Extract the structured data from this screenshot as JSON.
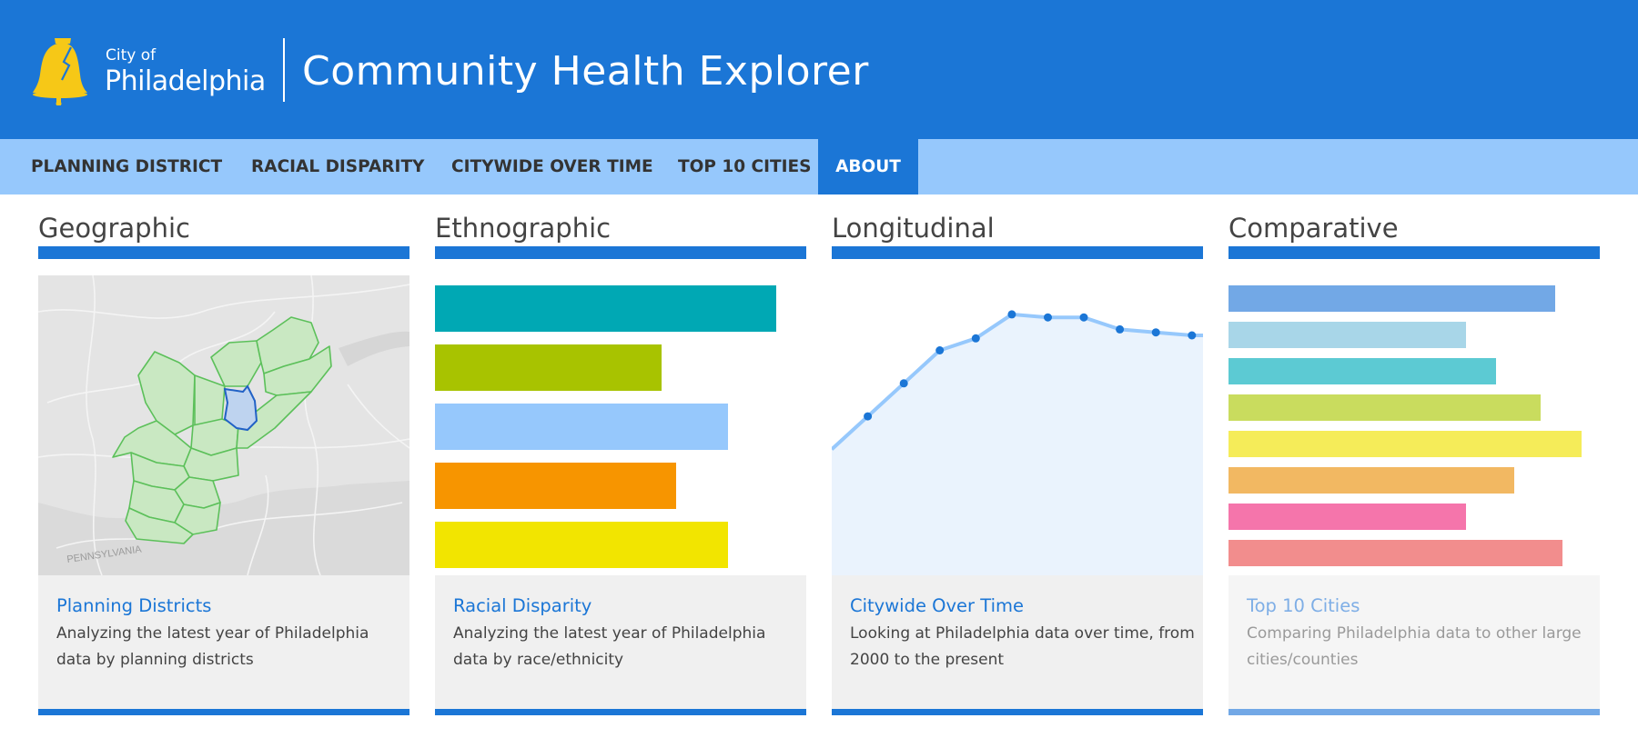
{
  "header": {
    "city_prefix": "City of",
    "city_name": "Philadelphia",
    "app_title": "Community Health Explorer",
    "logo_icon": "liberty-bell-icon",
    "background_color": "#1b76d6",
    "logo_color": "#f6c817"
  },
  "nav": {
    "background_color": "#96c8fc",
    "active_color": "#1b76d6",
    "tabs": [
      {
        "label": "PLANNING DISTRICT",
        "active": false
      },
      {
        "label": "RACIAL DISPARITY",
        "active": false
      },
      {
        "label": "CITYWIDE OVER TIME",
        "active": false
      },
      {
        "label": "TOP 10 CITIES",
        "active": false
      },
      {
        "label": "ABOUT",
        "active": true
      }
    ]
  },
  "sections": [
    {
      "heading": "Geographic",
      "card_title": "Planning Districts",
      "card_description": "Analyzing the latest year of Philadelphia data by planning districts",
      "map_label": "PENNSYLVANIA"
    },
    {
      "heading": "Ethnographic",
      "card_title": "Racial Disparity",
      "card_description": "Analyzing the latest year of Philadelphia data by race/ethnicity"
    },
    {
      "heading": "Longitudinal",
      "card_title": "Citywide Over Time",
      "card_description": "Looking at Philadelphia data over time, from 2000 to the present"
    },
    {
      "heading": "Comparative",
      "card_title": "Top 10 Cities",
      "card_description": "Comparing Philadelphia data to other large cities/counties",
      "faded": true
    }
  ],
  "chart_data": [
    {
      "type": "bar",
      "orientation": "horizontal",
      "values": [
        92,
        61,
        79,
        65,
        79
      ],
      "colors": [
        "#00a8b4",
        "#a8c300",
        "#96c8fc",
        "#f79500",
        "#f2e500"
      ],
      "xlim": [
        0,
        100
      ]
    },
    {
      "type": "area",
      "x": [
        0,
        1,
        2,
        3,
        4,
        5,
        6,
        7,
        8,
        9,
        10
      ],
      "y": [
        42,
        53,
        64,
        75,
        79,
        87,
        86,
        86,
        82,
        81,
        80
      ],
      "markers": true,
      "line_color": "#96c8fc",
      "fill_color": "#eaf3fd",
      "marker_color": "#1b76d6",
      "ylim": [
        0,
        100
      ]
    },
    {
      "type": "bar",
      "orientation": "horizontal",
      "values": [
        88,
        64,
        72,
        84,
        95,
        77,
        64,
        90
      ],
      "colors": [
        "#72a8e6",
        "#a8d6e8",
        "#5ccad3",
        "#c9dc5e",
        "#f5ec59",
        "#f2b862",
        "#f575ab",
        "#f28d8d"
      ],
      "xlim": [
        0,
        100
      ]
    }
  ]
}
